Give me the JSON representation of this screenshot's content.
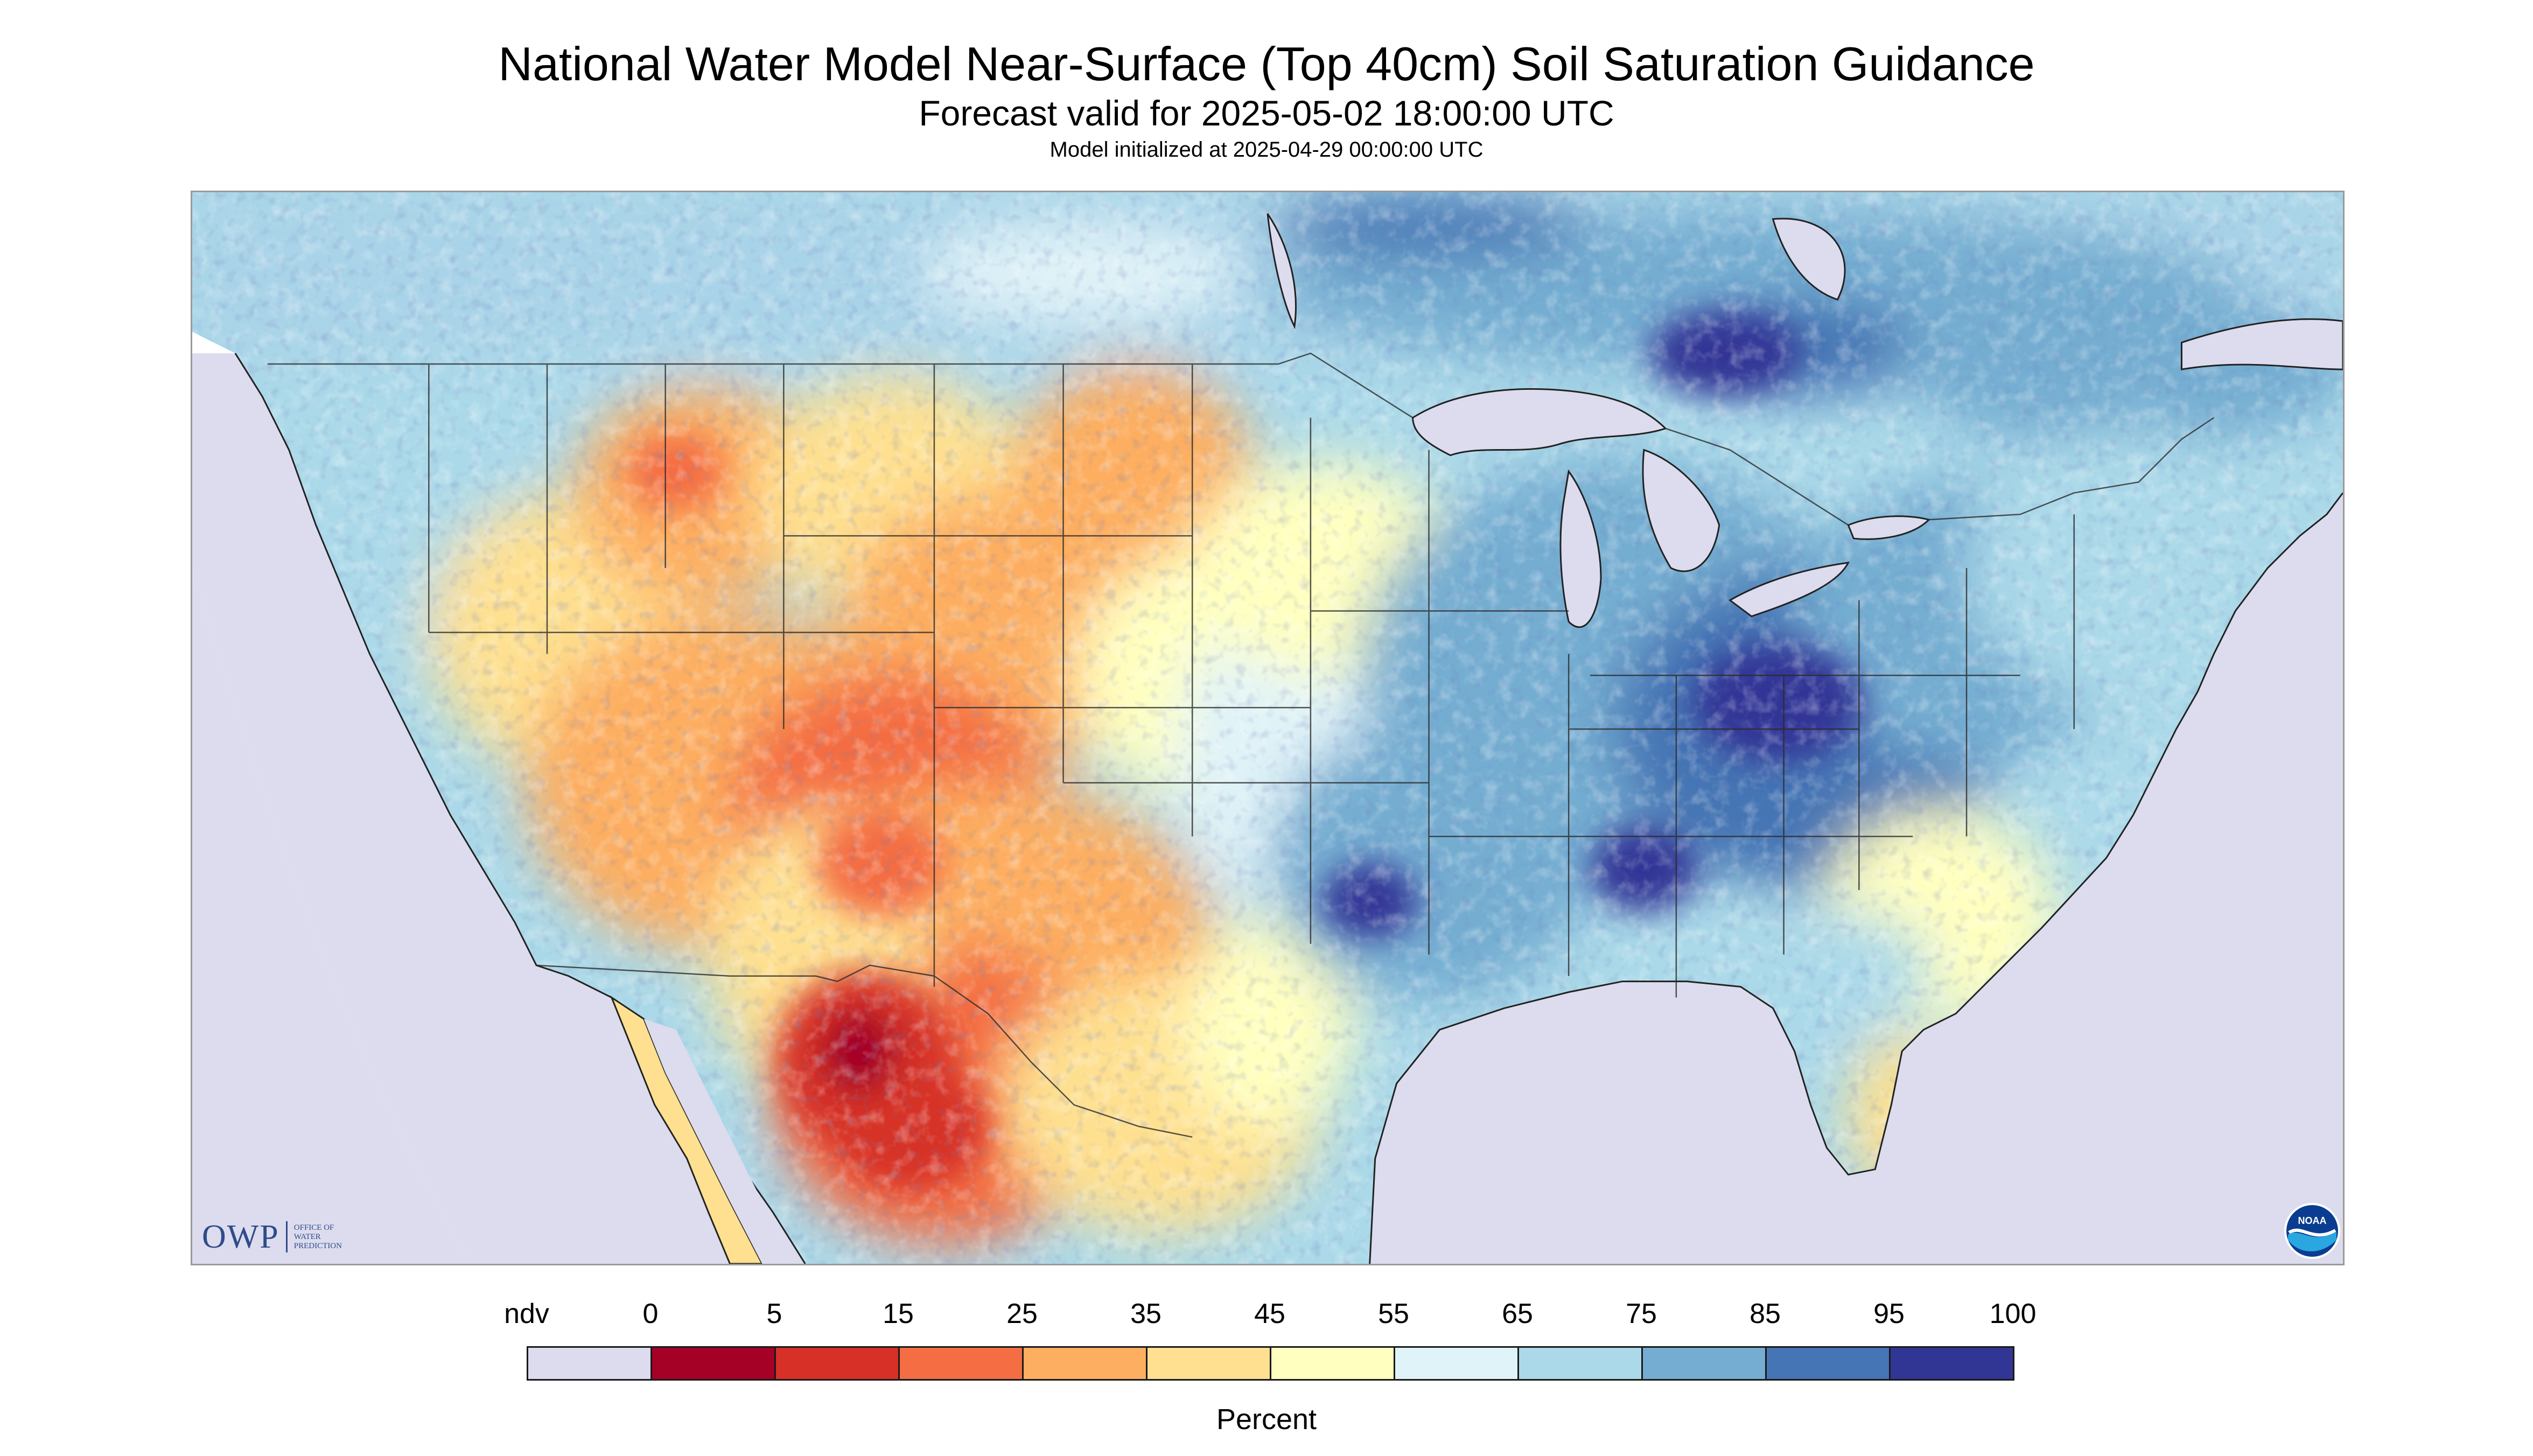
{
  "title": "National Water Model Near-Surface (Top 40cm) Soil Saturation Guidance",
  "subtitle": "Forecast valid for 2025-05-02 18:00:00 UTC",
  "init_line": "Model initialized at 2025-04-29 00:00:00 UTC",
  "logos": {
    "owp_letters": "OWP",
    "owp_text": [
      "OFFICE OF",
      "WATER",
      "PREDICTION"
    ],
    "noaa_text": "NOAA"
  },
  "legend": {
    "unit_label": "Percent",
    "ticks": [
      "ndv",
      "0",
      "5",
      "15",
      "25",
      "35",
      "45",
      "55",
      "65",
      "75",
      "85",
      "95",
      "100"
    ],
    "bins": [
      {
        "range": "ndv",
        "color": "#dcdcee"
      },
      {
        "range": "0-5",
        "color": "#a50026"
      },
      {
        "range": "5-15",
        "color": "#d73027"
      },
      {
        "range": "15-25",
        "color": "#f46d43"
      },
      {
        "range": "25-35",
        "color": "#fdae61"
      },
      {
        "range": "35-45",
        "color": "#fee090"
      },
      {
        "range": "45-55",
        "color": "#ffffbf"
      },
      {
        "range": "55-65",
        "color": "#e0f3f8"
      },
      {
        "range": "65-75",
        "color": "#abd9e9"
      },
      {
        "range": "75-85",
        "color": "#74add1"
      },
      {
        "range": "85-95",
        "color": "#4575b4"
      },
      {
        "range": "95-100",
        "color": "#313695"
      }
    ]
  },
  "map": {
    "region": "Continental United States, southern Canada and northern Mexico",
    "no_data_color": "#dcdcee",
    "dry_regions": [
      "Desert Southwest",
      "Northern Mexico",
      "High Plains",
      "Florida peninsula"
    ],
    "wet_regions": [
      "Ohio Valley",
      "Mississippi Valley",
      "Great Lakes",
      "Northeast",
      "Eastern Canada"
    ]
  }
}
